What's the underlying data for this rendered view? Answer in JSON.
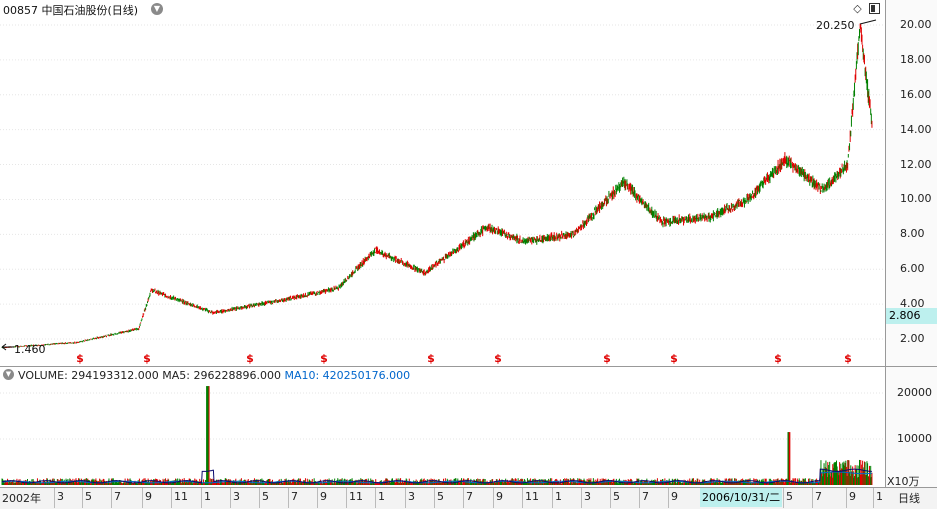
{
  "header": {
    "title": "00857 中国石油股份(日线)",
    "chevron_icon": "chevron-down-icon",
    "diamond_icon": "diamond-icon",
    "panel_icon": "panel-toggle-icon"
  },
  "price_axis": {
    "labels": [
      "20.00",
      "18.00",
      "16.00",
      "14.00",
      "12.00",
      "10.00",
      "8.00",
      "6.00",
      "4.00",
      "2.00"
    ],
    "last_price": "2.806"
  },
  "annotations": {
    "high": "20.250",
    "low": "1.460"
  },
  "dividend_marker": "$",
  "volume_header": {
    "vol_label": "VOLUME: 294193312.000",
    "ma5_label": "MA5: 296228896.000",
    "ma10_label": "MA10: 420250176.000"
  },
  "volume_axis": {
    "labels": [
      "20000",
      "10000"
    ],
    "unit": "X10万"
  },
  "time_axis": {
    "months": [
      "2002年",
      "3",
      "5",
      "7",
      "9",
      "11",
      "1",
      "3",
      "5",
      "7",
      "9",
      "11",
      "1",
      "3",
      "5",
      "7",
      "9",
      "11",
      "1",
      "3",
      "5",
      "7",
      "9",
      "5",
      "7",
      "9",
      "1"
    ],
    "cursor_date": "2006/10/31/二",
    "period": "日线"
  },
  "colors": {
    "up": "#e00000",
    "down": "#008000",
    "ma5": "#0a0a6e",
    "ma10": "#0066cc",
    "highlight": "#bdf0ee"
  },
  "chart_data": {
    "type": "candlestick",
    "title": "00857 中国石油股份(日线)",
    "price_axis_range": [
      1.0,
      21.0
    ],
    "high": 20.25,
    "low": 1.46,
    "last": 2.806,
    "approx_close_path": [
      {
        "t": "2002-01",
        "close": 1.5
      },
      {
        "t": "2002-07",
        "close": 1.8
      },
      {
        "t": "2002-12",
        "close": 2.6
      },
      {
        "t": "2003-01",
        "close": 4.8
      },
      {
        "t": "2003-06",
        "close": 3.5
      },
      {
        "t": "2003-12",
        "close": 4.3
      },
      {
        "t": "2004-04",
        "close": 4.9
      },
      {
        "t": "2004-07",
        "close": 7.1
      },
      {
        "t": "2004-11",
        "close": 5.8
      },
      {
        "t": "2005-04",
        "close": 8.4
      },
      {
        "t": "2005-07",
        "close": 7.6
      },
      {
        "t": "2005-11",
        "close": 8.0
      },
      {
        "t": "2006-03",
        "close": 11.0
      },
      {
        "t": "2006-06",
        "close": 8.7
      },
      {
        "t": "2006-10",
        "close": 9.0
      },
      {
        "t": "2007-01",
        "close": 10.0
      },
      {
        "t": "2007-04",
        "close": 12.3
      },
      {
        "t": "2007-07",
        "close": 10.5
      },
      {
        "t": "2007-09",
        "close": 12.0
      },
      {
        "t": "2007-10",
        "close": 20.0
      },
      {
        "t": "2007-11",
        "close": 14.0
      }
    ],
    "volume_axis_range": [
      0,
      22000
    ],
    "volume_unit": "X10万",
    "volume_peak": 21500
  }
}
